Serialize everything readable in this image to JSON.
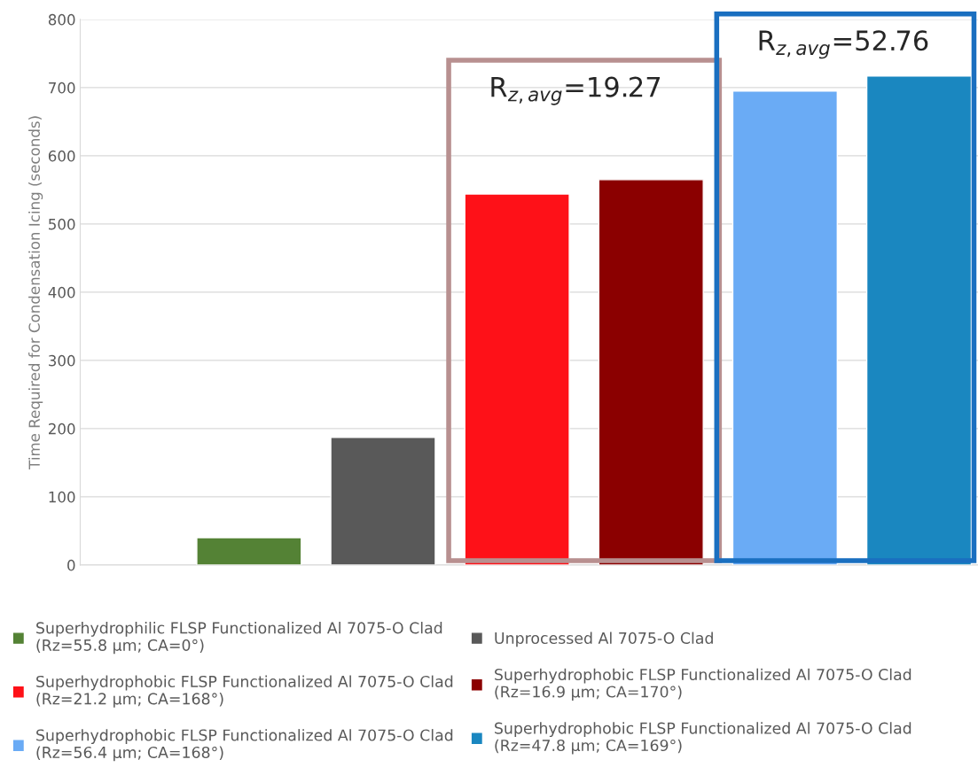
{
  "chart_data": {
    "type": "bar",
    "ylabel": "Time Required for Condensation Icing (seconds)",
    "categories": [
      null
    ],
    "series": [
      {
        "name": "Superhydrophilic FLSP Functionalized Al 7075-O Clad\n(Rz=55.8 µm; CA=0°)",
        "color": "#548235",
        "values": [
          40
        ]
      },
      {
        "name": "Unprocessed Al 7075-O Clad",
        "color": "#595959",
        "values": [
          187
        ]
      },
      {
        "name": "Superhydrophobic FLSP Functionalized Al 7075-O Clad\n(Rz=21.2 µm; CA=168°)",
        "color": "#fe1118",
        "values": [
          544
        ]
      },
      {
        "name": "Superhydrophobic FLSP Functionalized Al 7075-O Clad\n(Rz=16.9 µm; CA=170°)",
        "color": "#8b0000",
        "values": [
          565
        ]
      },
      {
        "name": "Superhydrophobic FLSP Functionalized Al 7075-O Clad\n(Rz=56.4 µm; CA=168°)",
        "color": "#6aabf5",
        "values": [
          695
        ]
      },
      {
        "name": "Superhydrophobic FLSP Functionalized Al 7075-O Clad\n(Rz=47.8 µm; CA=169°)",
        "color": "#1a87c0",
        "values": [
          717
        ]
      }
    ],
    "annotations": [
      "R$_{z,avg}$=19.27",
      "R$_{z,avg}$=52.76"
    ],
    "ylim": [
      0,
      800
    ],
    "yticks": [
      0,
      100,
      200,
      300,
      400,
      500,
      600,
      700,
      800
    ],
    "grid": "y",
    "legend": "bottom"
  }
}
